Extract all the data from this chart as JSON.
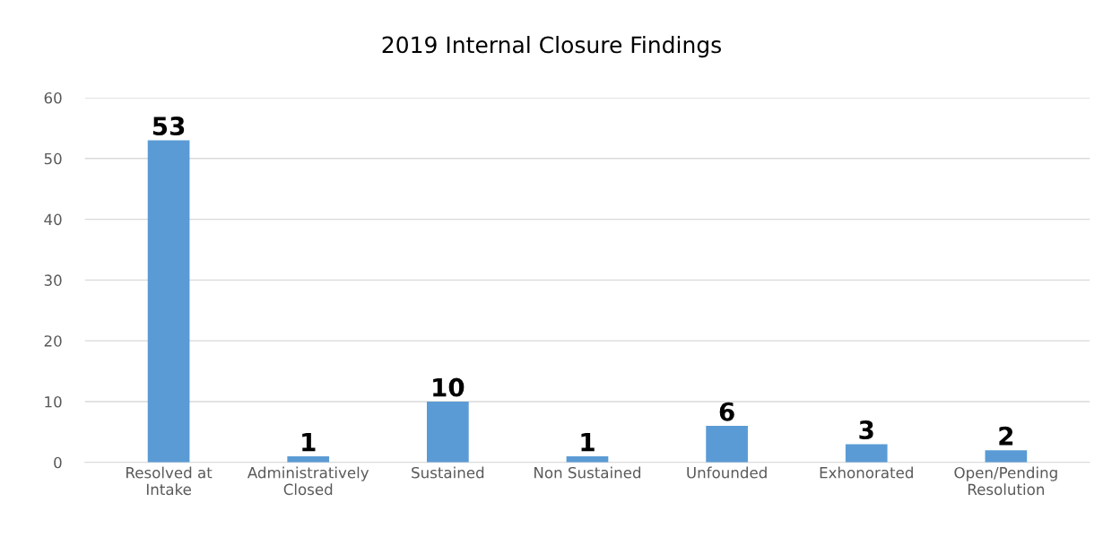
{
  "chart_data": {
    "type": "bar",
    "title": "2019 Internal Closure Findings",
    "categories": [
      "Resolved at\nIntake",
      "Administratively\nClosed",
      "Sustained",
      "Non Sustained",
      "Unfounded",
      "Exhonorated",
      "Open/Pending\nResolution"
    ],
    "values": [
      53,
      1,
      10,
      1,
      6,
      3,
      2
    ],
    "color": "#5b9bd5",
    "ylim": [
      0,
      60
    ],
    "yticks": [
      0,
      10,
      20,
      30,
      40,
      50,
      60
    ],
    "grid": "y",
    "data_labels": true,
    "legend": false
  }
}
